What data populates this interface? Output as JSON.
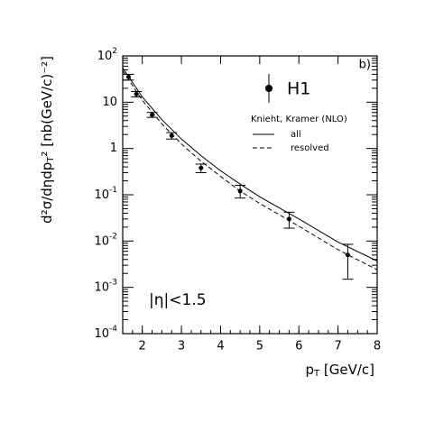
{
  "chart_data": {
    "type": "scatter",
    "panel_label": "b)",
    "annotation": "|η|<1.5",
    "xlabel": {
      "main": "p",
      "sub": "T",
      "rest": " [GeV/c]"
    },
    "ylabel": {
      "main": "d²σ/dηdp",
      "sub": "T",
      "rest": "² [nb(GeV/c)⁻²]"
    },
    "xlim": [
      1.5,
      8
    ],
    "xticks": [
      2,
      3,
      4,
      5,
      6,
      7,
      8
    ],
    "ylim": [
      0.0001,
      100
    ],
    "log_y": true,
    "yticks": [
      {
        "value": 0.0001,
        "label": "10",
        "exponent": "-4"
      },
      {
        "value": 0.001,
        "label": "10",
        "exponent": "-3"
      },
      {
        "value": 0.01,
        "label": "10",
        "exponent": "-2"
      },
      {
        "value": 0.1,
        "label": "10",
        "exponent": "-1"
      },
      1,
      10,
      {
        "value": 100,
        "label": "10",
        "exponent": "2"
      }
    ],
    "data": {
      "name": "H1",
      "color": "#000",
      "x": [
        1.65,
        1.85,
        2.25,
        2.75,
        3.5,
        4.5,
        5.75,
        7.25
      ],
      "values": [
        35,
        15,
        5.3,
        1.9,
        0.38,
        0.12,
        0.03,
        0.005
      ],
      "low": [
        30,
        13,
        4.7,
        1.6,
        0.3,
        0.085,
        0.019,
        0.0015
      ],
      "high": [
        40,
        17,
        6,
        2.2,
        0.46,
        0.16,
        0.042,
        0.0085
      ]
    },
    "theory_title": "Knieht, Kramer (NLO)",
    "curves": [
      {
        "name": "all",
        "color": "#000",
        "dash": false,
        "x": [
          1.5,
          2,
          2.5,
          3,
          3.5,
          4,
          4.5,
          5,
          6,
          7,
          8
        ],
        "values": [
          55,
          13,
          4.2,
          1.6,
          0.7,
          0.33,
          0.17,
          0.09,
          0.03,
          0.0095,
          0.0037
        ]
      },
      {
        "name": "resolved",
        "color": "#000",
        "dash": true,
        "x": [
          1.5,
          2,
          2.5,
          3,
          3.5,
          4,
          4.5,
          5,
          6,
          7,
          8
        ],
        "values": [
          48,
          11,
          3.4,
          1.25,
          0.53,
          0.25,
          0.12,
          0.065,
          0.021,
          0.0065,
          0.0024
        ]
      }
    ]
  }
}
